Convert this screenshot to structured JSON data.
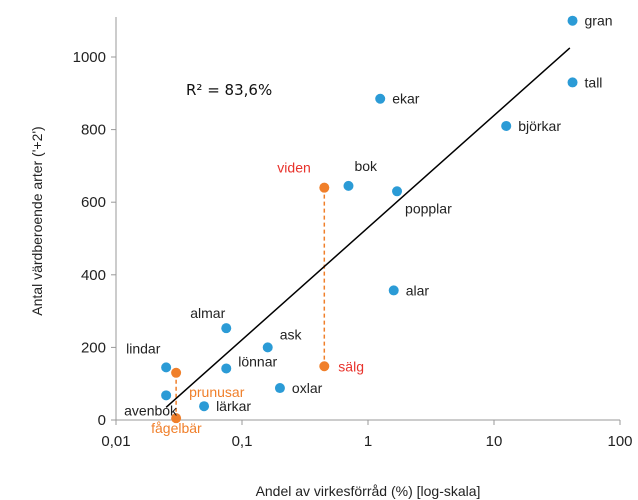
{
  "chart_data": {
    "type": "scatter",
    "xscale": "log",
    "xlabel": "Andel av virkesförråd (%) [log-skala]",
    "ylabel": "Antal värdberoende arter ('+2')",
    "xlim": [
      0.01,
      100
    ],
    "ylim": [
      0,
      1100
    ],
    "x_ticks": [
      0.01,
      0.1,
      1,
      10,
      100
    ],
    "x_tick_labels": [
      "0,01",
      "0,1",
      "1",
      "10",
      "100"
    ],
    "y_ticks": [
      0,
      200,
      400,
      600,
      800,
      1000
    ],
    "y_tick_labels": [
      "0",
      "200",
      "400",
      "600",
      "800",
      "1000"
    ],
    "grid": false,
    "annotation": "R² = 83,6%",
    "colors": {
      "native": "#2b9bd6",
      "nonnative": "#f07f2a",
      "label_red": "#e8322b",
      "trendline": "#000000"
    },
    "points": [
      {
        "label": "gran",
        "x": 42,
        "y": 1100,
        "group": "native"
      },
      {
        "label": "tall",
        "x": 42,
        "y": 930,
        "group": "native"
      },
      {
        "label": "ekar",
        "x": 1.25,
        "y": 885,
        "group": "native"
      },
      {
        "label": "björkar",
        "x": 12.5,
        "y": 810,
        "group": "native"
      },
      {
        "label": "bok",
        "x": 0.7,
        "y": 645,
        "group": "native"
      },
      {
        "label": "popplar",
        "x": 1.7,
        "y": 630,
        "group": "native"
      },
      {
        "label": "alar",
        "x": 1.6,
        "y": 357,
        "group": "native"
      },
      {
        "label": "almar",
        "x": 0.075,
        "y": 253,
        "group": "native"
      },
      {
        "label": "ask",
        "x": 0.16,
        "y": 200,
        "group": "native"
      },
      {
        "label": "lindar",
        "x": 0.025,
        "y": 145,
        "group": "native"
      },
      {
        "label": "lönnar",
        "x": 0.075,
        "y": 142,
        "group": "native"
      },
      {
        "label": "oxlar",
        "x": 0.2,
        "y": 88,
        "group": "native"
      },
      {
        "label": "avenbok",
        "x": 0.025,
        "y": 68,
        "group": "native"
      },
      {
        "label": "lärkar",
        "x": 0.05,
        "y": 38,
        "group": "native"
      },
      {
        "label": "viden",
        "x": 0.45,
        "y": 640,
        "group": "nonnative"
      },
      {
        "label": "sälg",
        "x": 0.45,
        "y": 148,
        "group": "nonnative"
      },
      {
        "label": "prunusar",
        "x": 0.03,
        "y": 130,
        "group": "nonnative"
      },
      {
        "label": "fågelbär",
        "x": 0.03,
        "y": 5,
        "group": "nonnative"
      }
    ],
    "dashed_links": [
      [
        "viden",
        "sälg"
      ],
      [
        "prunusar",
        "fågelbär"
      ]
    ],
    "trendline": [
      {
        "x": 0.025,
        "y": 35
      },
      {
        "x": 40,
        "y": 1025
      }
    ]
  }
}
